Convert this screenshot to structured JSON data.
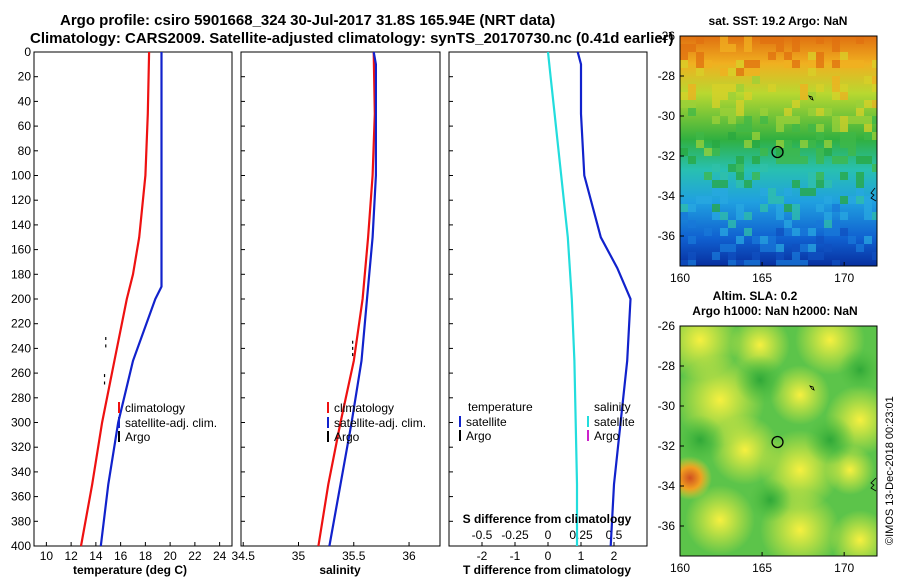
{
  "header": {
    "line1": "Argo profile: csiro 5901668_324 30-Jul-2017 31.8S 165.94E (NRT data)",
    "line2": "Climatology: CARS2009. Satellite-adjusted climatology: synTS_20170730.nc (0.41d earlier)"
  },
  "colors": {
    "climatology": "#ee1111",
    "satellite": "#1122cc",
    "argo": "#000000",
    "satellite_salinity": "#22dddd",
    "argo_salinity": "#cc22cc"
  },
  "chart_data": [
    {
      "type": "line",
      "name": "temperature-panel",
      "xlabel": "temperature (deg C)",
      "ylabel": "",
      "xlim": [
        9,
        25
      ],
      "ylim": [
        0,
        400
      ],
      "y_inverted": true,
      "xticks": [
        "10",
        "12",
        "14",
        "16",
        "18",
        "20",
        "22",
        "24"
      ],
      "yticks": [
        "0",
        "20",
        "40",
        "60",
        "80",
        "100",
        "120",
        "140",
        "160",
        "180",
        "200",
        "220",
        "240",
        "260",
        "280",
        "300",
        "320",
        "340",
        "360",
        "380",
        "400"
      ],
      "series": [
        {
          "name": "climatology",
          "depth": [
            0,
            50,
            100,
            150,
            180,
            200,
            250,
            300,
            350,
            400
          ],
          "values": [
            18.3,
            18.2,
            18.0,
            17.5,
            17.0,
            16.5,
            15.5,
            14.5,
            13.7,
            12.8
          ]
        },
        {
          "name": "satellite-adj. clim.",
          "depth": [
            0,
            50,
            100,
            150,
            180,
            190,
            200,
            250,
            300,
            350,
            400
          ],
          "values": [
            19.3,
            19.3,
            19.3,
            19.3,
            19.3,
            19.3,
            18.8,
            17.0,
            15.8,
            15.0,
            14.4
          ]
        },
        {
          "name": "Argo",
          "depth": [
            232,
            238,
            262,
            268
          ],
          "values": [
            14.8,
            14.8,
            14.7,
            14.7
          ]
        }
      ],
      "legend": {
        "position": "lower-right",
        "items": [
          "climatology",
          "satellite-adj. clim.",
          "Argo"
        ]
      }
    },
    {
      "type": "line",
      "name": "salinity-panel",
      "xlabel": "salinity",
      "ylabel": "",
      "xlim": [
        34.48,
        36.28
      ],
      "ylim": [
        0,
        400
      ],
      "y_inverted": true,
      "xticks": [
        "34.5",
        "35",
        "35.5",
        "36"
      ],
      "series": [
        {
          "name": "climatology",
          "depth": [
            0,
            50,
            100,
            150,
            200,
            250,
            300,
            350,
            400
          ],
          "values": [
            35.68,
            35.69,
            35.67,
            35.63,
            35.58,
            35.5,
            35.38,
            35.27,
            35.18
          ]
        },
        {
          "name": "satellite-adj. clim.",
          "depth": [
            0,
            10,
            50,
            100,
            150,
            200,
            250,
            300,
            350,
            400
          ],
          "values": [
            35.68,
            35.7,
            35.7,
            35.7,
            35.67,
            35.62,
            35.57,
            35.48,
            35.38,
            35.28
          ]
        },
        {
          "name": "Argo",
          "depth": [
            235,
            240,
            245
          ],
          "values": [
            35.49,
            35.49,
            35.49
          ]
        }
      ],
      "legend": {
        "position": "lower-right",
        "items": [
          "climatology",
          "satellite-adj. clim.",
          "Argo"
        ]
      }
    },
    {
      "type": "line",
      "name": "difference-panel",
      "xlabel": "T difference from climatology",
      "x2label": "S difference from climatology",
      "xlim": [
        -3,
        3
      ],
      "ylim": [
        0,
        400
      ],
      "y_inverted": true,
      "xticks": [
        "-2",
        "-1",
        "0",
        "1",
        "2"
      ],
      "x2ticks": [
        "-0.5",
        "-0.25",
        "0",
        "0.25",
        "0.5"
      ],
      "series": [
        {
          "name": "temperature satellite",
          "depth": [
            0,
            10,
            50,
            100,
            150,
            175,
            200,
            250,
            300,
            350,
            400
          ],
          "values": [
            0.9,
            1.0,
            1.0,
            1.1,
            1.6,
            2.1,
            2.5,
            2.4,
            2.2,
            2.0,
            1.9
          ]
        },
        {
          "name": "salinity satellite",
          "depth": [
            0,
            20,
            50,
            100,
            150,
            200,
            250,
            300,
            350,
            400
          ],
          "values": [
            0.0,
            0.02,
            0.05,
            0.1,
            0.15,
            0.18,
            0.2,
            0.21,
            0.22,
            0.22
          ]
        }
      ],
      "legend": {
        "position": "lower-middle",
        "headers": [
          "temperature",
          "salinity"
        ],
        "items": [
          "satellite",
          "Argo"
        ]
      }
    },
    {
      "type": "heatmap",
      "name": "sst-map",
      "title": "sat. SST: 19.2 Argo: NaN",
      "xlim": [
        160,
        172
      ],
      "ylim": [
        -37.5,
        -26
      ],
      "xticks": [
        "160",
        "165",
        "170"
      ],
      "yticks": [
        "-26",
        "-28",
        "-30",
        "-32",
        "-34",
        "-36"
      ],
      "argo_marker": {
        "lon": 165.94,
        "lat": -31.8
      }
    },
    {
      "type": "heatmap",
      "name": "sla-map",
      "title_line1": "Altim. SLA: 0.2",
      "title_line2": "Argo h1000: NaN h2000: NaN",
      "xlim": [
        160,
        172
      ],
      "ylim": [
        -37.5,
        -26
      ],
      "xticks": [
        "160",
        "165",
        "170"
      ],
      "yticks": [
        "-26",
        "-28",
        "-30",
        "-32",
        "-34",
        "-36"
      ],
      "argo_marker": {
        "lon": 165.94,
        "lat": -31.8
      }
    }
  ],
  "footer": {
    "credit": "©IMOS 13-Dec-2018 00:23:01"
  }
}
